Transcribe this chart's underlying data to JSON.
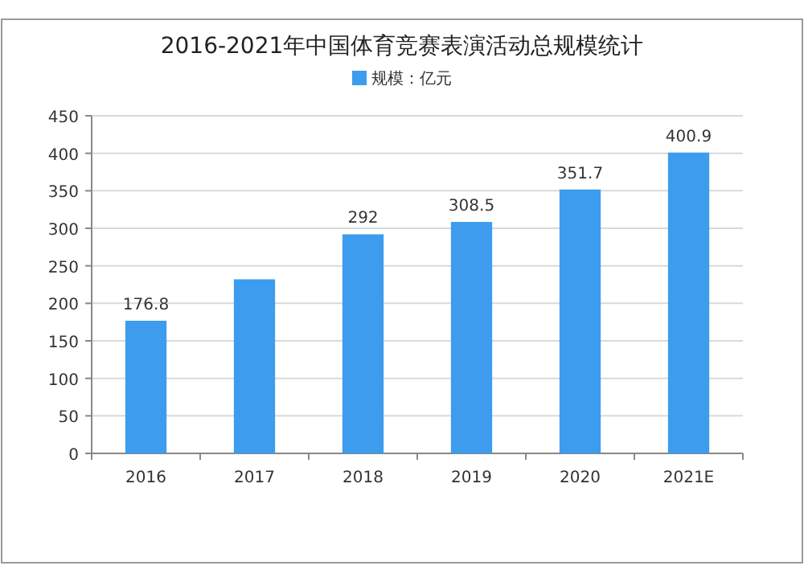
{
  "chart_data": {
    "type": "bar",
    "title": "2016-2021年中国体育竞赛表演活动总规模统计",
    "categories": [
      "2016",
      "2017",
      "2018",
      "2019",
      "2020",
      "2021E"
    ],
    "series": [
      {
        "name": "规模：亿元",
        "color": "#3d9ced",
        "values": [
          176.8,
          232,
          292,
          308.5,
          351.7,
          400.9
        ],
        "value_labels": [
          "176.8",
          null,
          "292",
          "308.5",
          "351.7",
          "400.9"
        ]
      }
    ],
    "ylim": [
      0,
      450
    ],
    "yticks": [
      0,
      50,
      100,
      150,
      200,
      250,
      300,
      350,
      400,
      450
    ],
    "grid": "y",
    "legend": "top"
  }
}
